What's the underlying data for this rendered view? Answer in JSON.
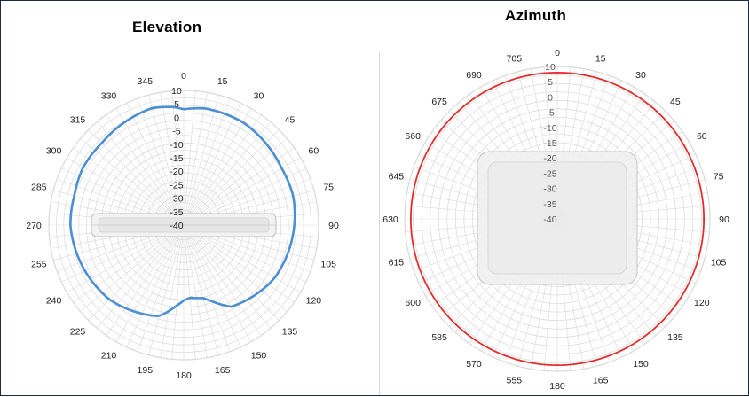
{
  "chart_data": [
    {
      "type": "polar-line",
      "title": "Elevation",
      "angle_labels": [
        "0",
        "15",
        "30",
        "45",
        "60",
        "75",
        "90",
        "105",
        "120",
        "135",
        "150",
        "165",
        "180",
        "195",
        "210",
        "225",
        "240",
        "255",
        "270",
        "285",
        "300",
        "315",
        "330",
        "345"
      ],
      "radial_labels": [
        "10",
        "5",
        "0",
        "-5",
        "-10",
        "-15",
        "-20",
        "-25",
        "-30",
        "-35",
        "-40"
      ],
      "rlim": [
        -40,
        10
      ],
      "radial_unit": "dB",
      "series": [
        {
          "color": "#4a8fd4",
          "angles": [
            0,
            10,
            15,
            30,
            45,
            60,
            75,
            90,
            105,
            120,
            135,
            150,
            160,
            165,
            175,
            180,
            185,
            195,
            210,
            225,
            240,
            255,
            270,
            285,
            300,
            315,
            330,
            345,
            355
          ],
          "values": [
            3,
            4,
            4,
            4,
            3,
            2,
            2,
            1,
            0,
            -1,
            -3,
            -5,
            -10,
            -12,
            -13,
            -12,
            -10,
            -5,
            -3,
            -1,
            0,
            1,
            2,
            2,
            3,
            3,
            4,
            5,
            4
          ]
        }
      ],
      "grid": true
    },
    {
      "type": "polar-line",
      "title": "Azimuth",
      "angle_labels": [
        "0",
        "15",
        "30",
        "45",
        "60",
        "75",
        "90",
        "105",
        "120",
        "135",
        "150",
        "165",
        "180",
        "555",
        "570",
        "585",
        "600",
        "615",
        "630",
        "645",
        "660",
        "675",
        "690",
        "705"
      ],
      "radial_labels": [
        "10",
        "5",
        "0",
        "-5",
        "-10",
        "-15",
        "-20",
        "-25",
        "-30",
        "-35",
        "-40"
      ],
      "rlim": [
        -40,
        10
      ],
      "radial_unit": "dB",
      "series": [
        {
          "color": "#e52b2b",
          "angles": [
            0,
            30,
            60,
            90,
            120,
            150,
            180,
            210,
            240,
            270,
            300,
            330,
            360
          ],
          "values": [
            8,
            8,
            8,
            8,
            8,
            8,
            8,
            8,
            8,
            8,
            8,
            8,
            8
          ]
        }
      ],
      "grid": true
    }
  ],
  "icons": {
    "elevation_device": "antenna-side-view-icon",
    "azimuth_device": "antenna-top-view-icon"
  },
  "colors": {
    "grid": "#d9d9d9",
    "elevation_trace": "#4a8fd4",
    "azimuth_trace": "#e52b2b"
  }
}
